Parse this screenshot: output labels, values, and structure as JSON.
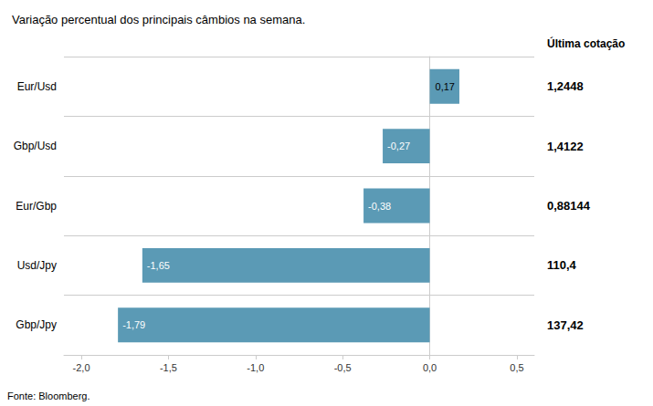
{
  "chart_data": {
    "type": "bar",
    "orientation": "horizontal",
    "subtitle": "Variação percentual dos principais câmbios na semana.",
    "categories": [
      "Eur/Usd",
      "Gbp/Usd",
      "Eur/Gbp",
      "Usd/Jpy",
      "Gbp/Jpy"
    ],
    "values": [
      0.17,
      -0.27,
      -0.38,
      -1.65,
      -1.79
    ],
    "value_labels": [
      "0,17",
      "-0,27",
      "-0,38",
      "-1,65",
      "-1,79"
    ],
    "data_labels": true,
    "color": "#5b9ab5",
    "xlim": [
      -2.1,
      0.6
    ],
    "xticks": [
      {
        "value": -2.0,
        "label": "-2,0"
      },
      {
        "value": -1.5,
        "label": "-1,5"
      },
      {
        "value": -1.0,
        "label": "-1,0"
      },
      {
        "value": -0.5,
        "label": "-0,5"
      },
      {
        "value": 0.0,
        "label": "0,0"
      },
      {
        "value": 0.5,
        "label": "0,5"
      }
    ],
    "grid": false,
    "annotations": [
      {
        "text": "Última cotação"
      },
      {
        "text": "1,2448",
        "category": "Eur/Usd"
      },
      {
        "text": "1,4122",
        "category": "Gbp/Usd"
      },
      {
        "text": "0,88144",
        "category": "Eur/Gbp"
      },
      {
        "text": "110,4",
        "category": "Usd/Jpy"
      },
      {
        "text": "137,42",
        "category": "Gbp/Jpy"
      },
      {
        "text": "Fonte: Bloomberg."
      }
    ]
  }
}
